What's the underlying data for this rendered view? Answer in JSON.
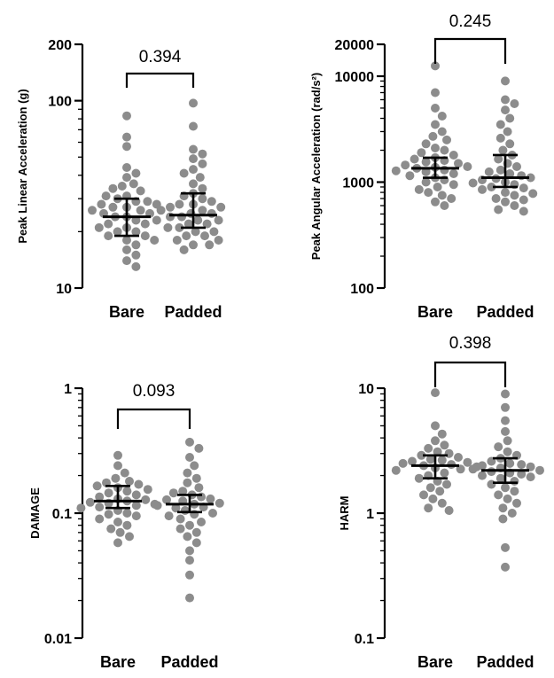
{
  "chart_data": [
    {
      "type": "scatter",
      "panel": "top-left",
      "ylabel": "Peak Linear Acceleration (g)",
      "yscale": "log",
      "ylim": [
        10,
        200
      ],
      "yticks": [
        {
          "v": 10,
          "label": "10"
        },
        {
          "v": 100,
          "label": "100"
        },
        {
          "v": 200,
          "label": "200"
        }
      ],
      "categories": [
        "Bare",
        "Padded"
      ],
      "p_value": "0.394",
      "colors": {
        "points": "#8c8c8c",
        "summary": "#000000"
      },
      "series": [
        {
          "category": "Bare",
          "median": 24,
          "ci_low": 19,
          "ci_high": 30,
          "values": [
            83,
            64,
            57,
            44,
            41,
            39,
            36,
            35,
            34,
            33,
            31,
            31,
            30,
            29,
            29,
            28,
            28,
            27,
            27,
            26,
            26,
            25,
            25,
            24,
            24,
            23,
            23,
            22,
            22,
            21,
            21,
            20,
            20,
            19,
            19,
            18,
            18,
            17,
            16,
            15,
            14,
            13
          ]
        },
        {
          "category": "Padded",
          "median": 24.5,
          "ci_low": 21,
          "ci_high": 32,
          "values": [
            97,
            73,
            55,
            52,
            49,
            46,
            43,
            41,
            39,
            36,
            34,
            32,
            31,
            30,
            29,
            28,
            28,
            27,
            27,
            26,
            26,
            25,
            25,
            24,
            24,
            23,
            23,
            22,
            22,
            21,
            21,
            20,
            20,
            19,
            19,
            18,
            18,
            17,
            17,
            16
          ]
        }
      ]
    },
    {
      "type": "scatter",
      "panel": "top-right",
      "ylabel": "Peak Angular Acceleration (rad/s²)",
      "yscale": "log",
      "ylim": [
        100,
        20000
      ],
      "yticks": [
        {
          "v": 100,
          "label": "100"
        },
        {
          "v": 1000,
          "label": "1000"
        },
        {
          "v": 10000,
          "label": "10000"
        },
        {
          "v": 20000,
          "label": "20000"
        }
      ],
      "categories": [
        "Bare",
        "Padded"
      ],
      "p_value": "0.245",
      "colors": {
        "points": "#8c8c8c",
        "summary": "#000000"
      },
      "series": [
        {
          "category": "Bare",
          "median": 1350,
          "ci_low": 1100,
          "ci_high": 1700,
          "values": [
            12500,
            7000,
            5000,
            4200,
            3500,
            3000,
            2700,
            2500,
            2300,
            2100,
            2000,
            1900,
            1800,
            1700,
            1650,
            1600,
            1550,
            1500,
            1450,
            1400,
            1380,
            1350,
            1300,
            1280,
            1250,
            1200,
            1150,
            1100,
            1050,
            1000,
            950,
            900,
            850,
            800,
            750,
            700,
            650,
            600
          ]
        },
        {
          "category": "Padded",
          "median": 1100,
          "ci_low": 900,
          "ci_high": 1800,
          "values": [
            9000,
            6000,
            5500,
            4800,
            4000,
            3500,
            3000,
            2600,
            2300,
            2000,
            1800,
            1650,
            1500,
            1400,
            1300,
            1250,
            1200,
            1150,
            1100,
            1080,
            1050,
            1000,
            980,
            950,
            900,
            880,
            850,
            800,
            780,
            750,
            700,
            680,
            650,
            600,
            550,
            530
          ]
        }
      ]
    },
    {
      "type": "scatter",
      "panel": "bottom-left",
      "ylabel": "DAMAGE",
      "yscale": "log",
      "ylim": [
        0.01,
        1
      ],
      "yticks": [
        {
          "v": 0.01,
          "label": "0.01"
        },
        {
          "v": 0.1,
          "label": "0.1"
        },
        {
          "v": 1,
          "label": "1"
        }
      ],
      "categories": [
        "Bare",
        "Padded"
      ],
      "p_value": "0.093",
      "colors": {
        "points": "#8c8c8c",
        "summary": "#000000"
      },
      "series": [
        {
          "category": "Bare",
          "median": 0.125,
          "ci_low": 0.11,
          "ci_high": 0.165,
          "values": [
            0.29,
            0.24,
            0.21,
            0.19,
            0.18,
            0.175,
            0.17,
            0.165,
            0.16,
            0.155,
            0.15,
            0.145,
            0.14,
            0.135,
            0.13,
            0.128,
            0.125,
            0.122,
            0.12,
            0.118,
            0.115,
            0.112,
            0.11,
            0.105,
            0.1,
            0.098,
            0.095,
            0.09,
            0.085,
            0.08,
            0.075,
            0.07,
            0.065,
            0.058
          ]
        },
        {
          "category": "Padded",
          "median": 0.118,
          "ci_low": 0.102,
          "ci_high": 0.14,
          "values": [
            0.37,
            0.33,
            0.28,
            0.24,
            0.21,
            0.19,
            0.175,
            0.16,
            0.15,
            0.145,
            0.14,
            0.135,
            0.13,
            0.128,
            0.125,
            0.12,
            0.118,
            0.115,
            0.112,
            0.11,
            0.105,
            0.1,
            0.098,
            0.095,
            0.09,
            0.085,
            0.08,
            0.075,
            0.07,
            0.065,
            0.058,
            0.05,
            0.042,
            0.032,
            0.021
          ]
        }
      ]
    },
    {
      "type": "scatter",
      "panel": "bottom-right",
      "ylabel": "HARM",
      "yscale": "log",
      "ylim": [
        0.1,
        10
      ],
      "yticks": [
        {
          "v": 0.1,
          "label": "0.1"
        },
        {
          "v": 1,
          "label": "1"
        },
        {
          "v": 10,
          "label": "10"
        }
      ],
      "categories": [
        "Bare",
        "Padded"
      ],
      "p_value": "0.398",
      "colors": {
        "points": "#8c8c8c",
        "summary": "#000000"
      },
      "series": [
        {
          "category": "Bare",
          "median": 2.4,
          "ci_low": 1.9,
          "ci_high": 2.9,
          "values": [
            9.2,
            5.0,
            4.3,
            3.8,
            3.5,
            3.3,
            3.1,
            3.0,
            2.9,
            2.8,
            2.7,
            2.65,
            2.6,
            2.55,
            2.5,
            2.45,
            2.4,
            2.35,
            2.3,
            2.25,
            2.2,
            2.1,
            2.0,
            1.9,
            1.8,
            1.7,
            1.6,
            1.5,
            1.4,
            1.3,
            1.2,
            1.1,
            1.05
          ]
        },
        {
          "category": "Padded",
          "median": 2.2,
          "ci_low": 1.75,
          "ci_high": 2.75,
          "values": [
            9.0,
            7.0,
            5.5,
            4.5,
            3.8,
            3.4,
            3.1,
            2.9,
            2.75,
            2.6,
            2.5,
            2.45,
            2.4,
            2.35,
            2.3,
            2.25,
            2.2,
            2.15,
            2.1,
            2.05,
            2.0,
            1.95,
            1.9,
            1.8,
            1.7,
            1.6,
            1.5,
            1.4,
            1.3,
            1.2,
            1.1,
            1.0,
            0.9,
            0.53,
            0.37
          ]
        }
      ]
    }
  ]
}
